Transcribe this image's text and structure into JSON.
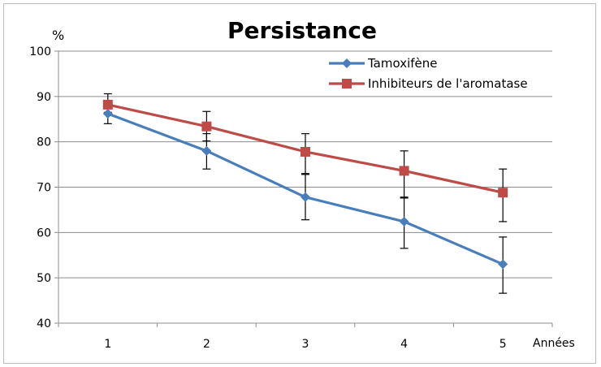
{
  "chart_data": {
    "type": "line",
    "title": "Persistance",
    "ylabel": "%",
    "xlabel": "Années",
    "categories": [
      "1",
      "2",
      "3",
      "4",
      "5"
    ],
    "ylim": [
      40,
      100
    ],
    "yticks": [
      40,
      50,
      60,
      70,
      80,
      90,
      100
    ],
    "grid": "horizontal",
    "legend_position": "top-right",
    "series": [
      {
        "name": "Tamoxifène",
        "color": "#4a7ebb",
        "marker": "diamond",
        "values": [
          86.2,
          78.0,
          67.8,
          62.4,
          53.0
        ],
        "error_low": [
          84.0,
          74.0,
          62.8,
          56.5,
          46.6
        ],
        "error_high": [
          88.0,
          81.8,
          72.8,
          67.8,
          59.0
        ]
      },
      {
        "name": "Inhibiteurs de l'aromatase",
        "color": "#be4b48",
        "marker": "square",
        "values": [
          88.2,
          83.4,
          77.8,
          73.6,
          68.8
        ],
        "error_low": [
          86.5,
          80.2,
          73.0,
          67.6,
          62.4
        ],
        "error_high": [
          90.6,
          86.7,
          81.8,
          78.0,
          74.0
        ]
      }
    ]
  }
}
